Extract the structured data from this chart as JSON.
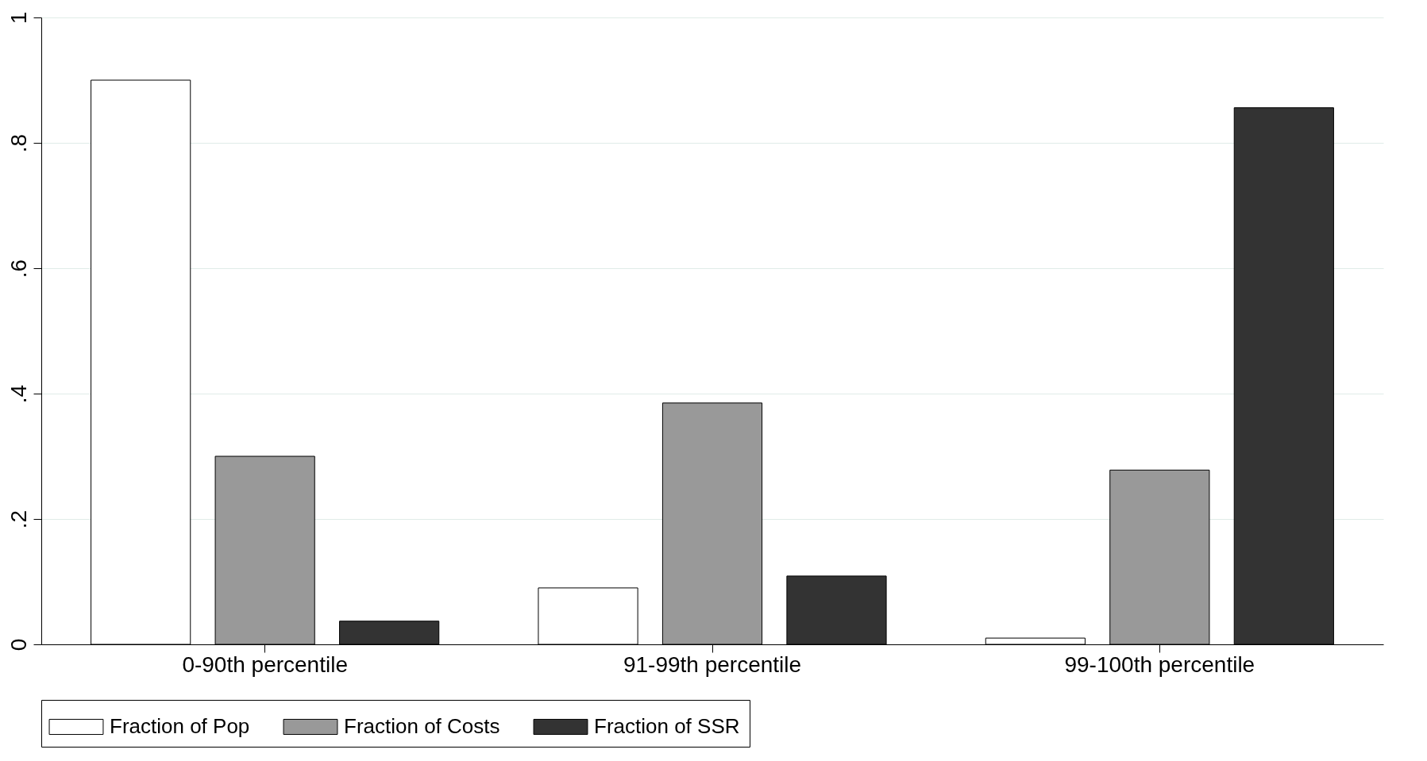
{
  "chart_data": {
    "type": "bar",
    "categories": [
      "0-90th percentile",
      "91-99th percentile",
      "99-100th percentile"
    ],
    "series": [
      {
        "name": "Fraction of Pop",
        "color": "#ffffff",
        "values": [
          0.9,
          0.09,
          0.01
        ]
      },
      {
        "name": "Fraction of Costs",
        "color": "#999999",
        "values": [
          0.3,
          0.385,
          0.278
        ]
      },
      {
        "name": "Fraction of SSR",
        "color": "#333333",
        "values": [
          0.037,
          0.109,
          0.856
        ]
      }
    ],
    "ylim": [
      0,
      1
    ],
    "yticks": [
      0,
      {
        "value": 0.2,
        "label": ".2"
      },
      {
        "value": 0.4,
        "label": ".4"
      },
      {
        "value": 0.6,
        "label": ".6"
      },
      {
        "value": 0.8,
        "label": ".8"
      },
      1
    ],
    "grid": "y",
    "legend": "bottom"
  }
}
